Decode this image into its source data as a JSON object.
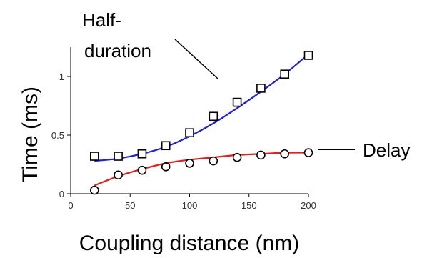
{
  "chart_data": {
    "type": "scatter",
    "title": "",
    "xlabel": "Coupling distance (nm)",
    "ylabel": "Time (ms)",
    "xlim": [
      0,
      200
    ],
    "ylim": [
      0,
      1.25
    ],
    "xticks": [
      "0",
      "50",
      "100",
      "150",
      "200"
    ],
    "yticks": [
      "0",
      "0.5",
      "1"
    ],
    "grid": false,
    "legend": "none",
    "series": [
      {
        "name": "Half-duration",
        "marker": "square",
        "fit_color": "#1f1fd6",
        "x": [
          20,
          40,
          60,
          80,
          100,
          120,
          140,
          160,
          180,
          200
        ],
        "y": [
          0.32,
          0.32,
          0.34,
          0.41,
          0.52,
          0.66,
          0.78,
          0.9,
          1.02,
          1.18
        ],
        "fit_y": [
          0.28,
          0.3,
          0.34,
          0.4,
          0.49,
          0.6,
          0.73,
          0.87,
          1.02,
          1.19
        ]
      },
      {
        "name": "Delay",
        "marker": "circle",
        "fit_color": "#e02020",
        "x": [
          20,
          40,
          60,
          80,
          100,
          120,
          140,
          160,
          180,
          200
        ],
        "y": [
          0.03,
          0.16,
          0.2,
          0.23,
          0.26,
          0.28,
          0.31,
          0.33,
          0.34,
          0.35
        ],
        "fit_y": [
          0.07,
          0.15,
          0.21,
          0.26,
          0.29,
          0.31,
          0.33,
          0.34,
          0.35,
          0.35
        ]
      }
    ]
  },
  "annotations": {
    "half_line1": "Half-",
    "half_line2": "duration",
    "delay": "Delay"
  }
}
